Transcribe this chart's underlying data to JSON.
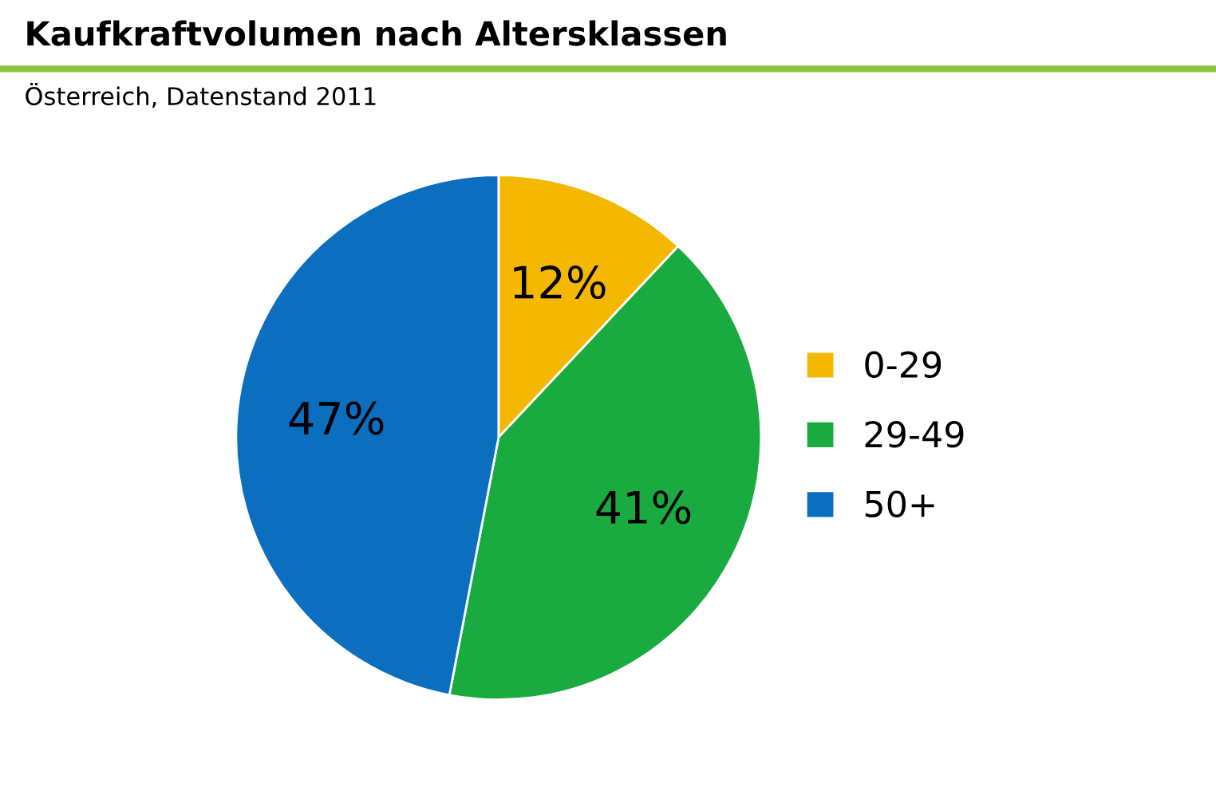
{
  "chart_data": {
    "type": "pie",
    "title": "Kaufkraftvolumen nach Altersklassen",
    "subtitle": "Österreich, Datenstand 2011",
    "categories": [
      "0-29",
      "29-49",
      "50+"
    ],
    "values": [
      12,
      41,
      47
    ],
    "value_labels": [
      "12%",
      "41%",
      "47%"
    ],
    "colors": [
      "#f5b800",
      "#1aab40",
      "#0b6ebf"
    ],
    "legend": "right"
  }
}
